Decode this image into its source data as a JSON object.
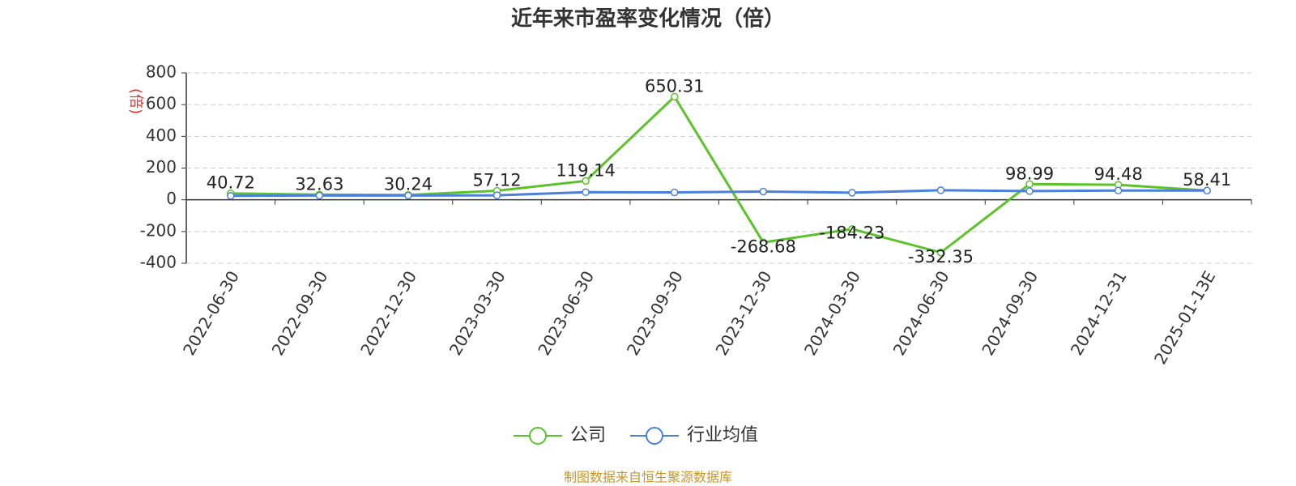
{
  "chart_data": {
    "type": "line",
    "title": "近年来市盈率变化情况（倍）",
    "y_label": "(倍)",
    "categories": [
      "2022-06-30",
      "2022-09-30",
      "2022-12-30",
      "2023-03-30",
      "2023-06-30",
      "2023-09-30",
      "2023-12-30",
      "2024-03-30",
      "2024-06-30",
      "2024-09-30",
      "2024-12-31",
      "2025-01-13E"
    ],
    "series": [
      {
        "name": "公司",
        "color": "#5cc22a",
        "show_labels": true,
        "values": [
          40.72,
          32.63,
          30.24,
          57.12,
          119.14,
          650.31,
          -268.68,
          -184.23,
          -332.35,
          98.99,
          94.48,
          58.41
        ]
      },
      {
        "name": "行业均值",
        "color": "#4a7fdc",
        "show_labels": false,
        "values": [
          25,
          27,
          27,
          28,
          48,
          47,
          52,
          45,
          60,
          55,
          58,
          58
        ]
      }
    ],
    "ylim": [
      -400,
      800
    ],
    "yticks": [
      -400,
      -200,
      0,
      200,
      400,
      600,
      800
    ],
    "grid": true,
    "legend": "bottom",
    "source": "制图数据来自恒生聚源数据库"
  }
}
